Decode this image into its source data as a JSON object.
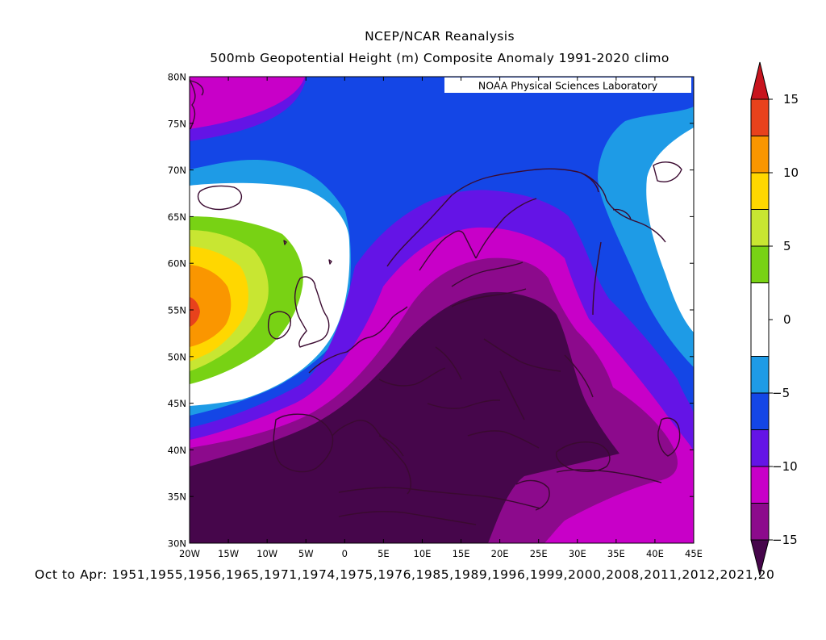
{
  "title_line1": "NCEP/NCAR Reanalysis",
  "title_line2": "500mb Geopotential Height (m) Composite Anomaly 1991-2020 climo",
  "credit": "NOAA Physical Sciences Laboratory",
  "footer": "Oct to Apr: 1951,1955,1956,1965,1971,1974,1975,1976,1985,1989,1996,1999,2000,2008,2011,2012,2021,20",
  "lat_labels": [
    "80N",
    "75N",
    "70N",
    "65N",
    "60N",
    "55N",
    "50N",
    "45N",
    "40N",
    "35N",
    "30N"
  ],
  "lon_labels": [
    "20W",
    "15W",
    "10W",
    "5W",
    "0",
    "5E",
    "10E",
    "15E",
    "20E",
    "25E",
    "30E",
    "35E",
    "40E",
    "45E"
  ],
  "colorbar": {
    "labels": [
      "15",
      "10",
      "5",
      "0",
      "-5",
      "-10",
      "-15"
    ],
    "bins": [
      {
        "lo": 12.5,
        "hi": 15,
        "color": "#e8421c"
      },
      {
        "lo": 10,
        "hi": 12.5,
        "color": "#fa9600"
      },
      {
        "lo": 7.5,
        "hi": 10,
        "color": "#ffd700"
      },
      {
        "lo": 5,
        "hi": 7.5,
        "color": "#c8e632"
      },
      {
        "lo": 2.5,
        "hi": 5,
        "color": "#78d214"
      },
      {
        "lo": -2.5,
        "hi": 2.5,
        "color": "#ffffff"
      },
      {
        "lo": -5,
        "hi": -2.5,
        "color": "#1e9be6"
      },
      {
        "lo": -7.5,
        "hi": -5,
        "color": "#1446e6"
      },
      {
        "lo": -10,
        "hi": -7.5,
        "color": "#6414e6"
      },
      {
        "lo": -12.5,
        "hi": -10,
        "color": "#c800c8"
      },
      {
        "lo": -15,
        "hi": -12.5,
        "color": "#8c0a8c"
      }
    ],
    "above_color": "#c8141e",
    "below_color": "#46064b"
  }
}
